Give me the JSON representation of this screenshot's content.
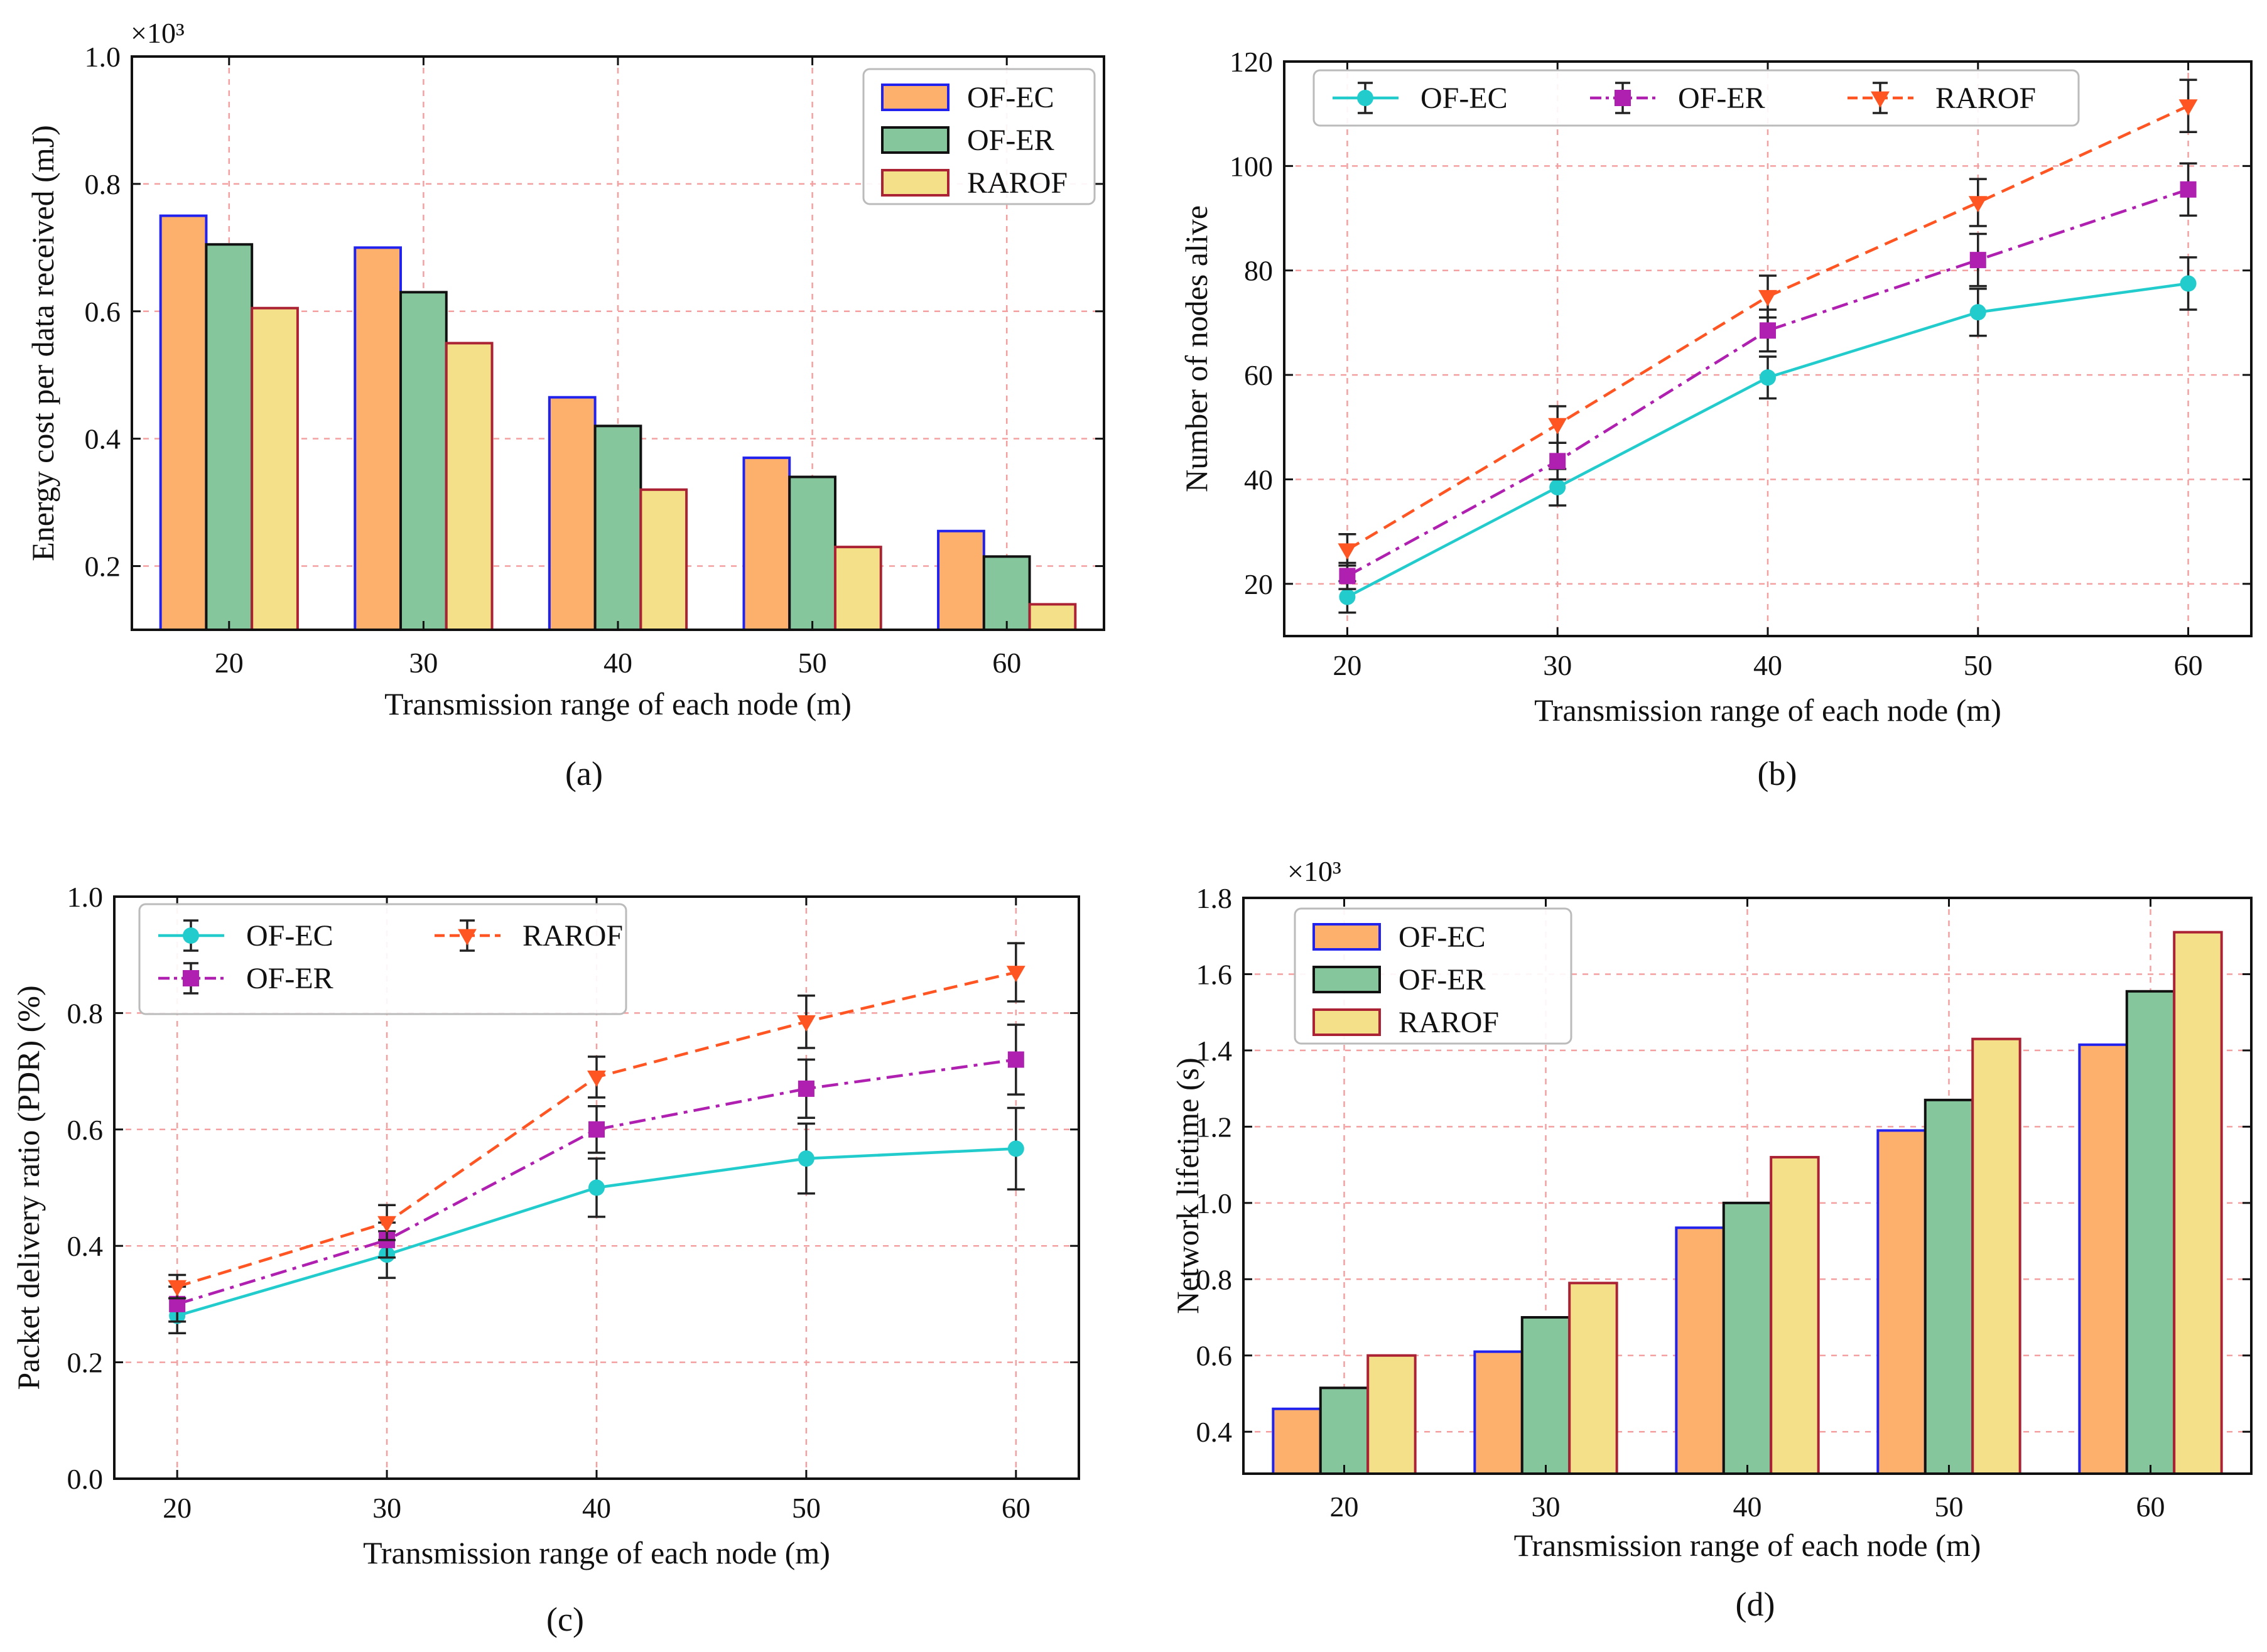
{
  "colors": {
    "bar_fill": [
      "#fdb06c",
      "#85c69d",
      "#f5e08a"
    ],
    "bar_edge": [
      "#2222ee",
      "#111111",
      "#aa2233"
    ],
    "line": [
      "#22cccc",
      "#b020b0",
      "#ff5522"
    ]
  },
  "chart_data": [
    {
      "type": "bar",
      "caption": "(a)",
      "title": "",
      "xlabel": "Transmission range of each node (m)",
      "ylabel": "Energy cost per data received (mJ)",
      "multiplier_label": "×10³",
      "categories": [
        "20",
        "30",
        "40",
        "50",
        "60"
      ],
      "ylim": [
        0.1,
        1.0
      ],
      "yticks": [
        0.2,
        0.4,
        0.6,
        0.8,
        1.0
      ],
      "ytick_labels": [
        "0.2",
        "0.4",
        "0.6",
        "0.8",
        "1.0"
      ],
      "grid": true,
      "legend": "top-right",
      "series": [
        {
          "name": "OF-EC",
          "values": [
            0.75,
            0.7,
            0.465,
            0.37,
            0.255
          ]
        },
        {
          "name": "OF-ER",
          "values": [
            0.705,
            0.63,
            0.42,
            0.34,
            0.215
          ]
        },
        {
          "name": "RAROF",
          "values": [
            0.605,
            0.55,
            0.32,
            0.23,
            0.14
          ]
        }
      ]
    },
    {
      "type": "line",
      "caption": "(b)",
      "title": "",
      "xlabel": "Transmission range of each node (m)",
      "ylabel": "Number of nodes alive",
      "x": [
        20,
        30,
        40,
        50,
        60
      ],
      "xlim": [
        17,
        63
      ],
      "ylim": [
        10,
        120
      ],
      "yticks": [
        20,
        40,
        60,
        80,
        100,
        120
      ],
      "ytick_labels": [
        "20",
        "40",
        "60",
        "80",
        "100",
        "120"
      ],
      "xtick_labels": [
        "20",
        "30",
        "40",
        "50",
        "60"
      ],
      "grid": true,
      "legend": "top",
      "legend_cols": 3,
      "series": [
        {
          "name": "OF-EC",
          "marker": "circle",
          "linestyle": "solid",
          "values": [
            17.5,
            38.5,
            59.5,
            72,
            77.5
          ],
          "errors": [
            3,
            3.5,
            4,
            4.5,
            5
          ]
        },
        {
          "name": "OF-ER",
          "marker": "square",
          "linestyle": "dashdot",
          "values": [
            21.5,
            43.5,
            68.5,
            82,
            95.5
          ],
          "errors": [
            2.5,
            3.5,
            4,
            5,
            5
          ]
        },
        {
          "name": "RAROF",
          "marker": "triangle-down",
          "linestyle": "dashed",
          "values": [
            26.5,
            50.5,
            75,
            93,
            111.5
          ],
          "errors": [
            3,
            3.5,
            4,
            4.5,
            5
          ]
        }
      ]
    },
    {
      "type": "line",
      "caption": "(c)",
      "title": "",
      "xlabel": "Transmission range of each node (m)",
      "ylabel": "Packet delivery ratio (PDR) (%)",
      "x": [
        20,
        30,
        40,
        50,
        60
      ],
      "xlim": [
        17,
        63
      ],
      "ylim": [
        0,
        1.0
      ],
      "yticks": [
        0.0,
        0.2,
        0.4,
        0.6,
        0.8,
        1.0
      ],
      "ytick_labels": [
        "0.0",
        "0.2",
        "0.4",
        "0.6",
        "0.8",
        "1.0"
      ],
      "xtick_labels": [
        "20",
        "30",
        "40",
        "50",
        "60"
      ],
      "grid": true,
      "legend": "top-left",
      "legend_cols": 2,
      "series": [
        {
          "name": "OF-EC",
          "marker": "circle",
          "linestyle": "solid",
          "values": [
            0.28,
            0.385,
            0.5,
            0.55,
            0.567
          ],
          "errors": [
            0.03,
            0.04,
            0.05,
            0.06,
            0.07
          ]
        },
        {
          "name": "OF-ER",
          "marker": "square",
          "linestyle": "dashdot",
          "values": [
            0.3,
            0.41,
            0.6,
            0.67,
            0.72
          ],
          "errors": [
            0.03,
            0.03,
            0.04,
            0.05,
            0.06
          ]
        },
        {
          "name": "RAROF",
          "marker": "triangle-down",
          "linestyle": "dashed",
          "values": [
            0.33,
            0.44,
            0.69,
            0.785,
            0.87
          ],
          "errors": [
            0.02,
            0.03,
            0.035,
            0.045,
            0.05
          ]
        }
      ]
    },
    {
      "type": "bar",
      "caption": "(d)",
      "title": "",
      "xlabel": "Transmission range of each node (m)",
      "ylabel": "Network lifetime (s)",
      "multiplier_label": "×10³",
      "categories": [
        "20",
        "30",
        "40",
        "50",
        "60"
      ],
      "ylim": [
        0.29,
        1.8
      ],
      "yticks": [
        0.4,
        0.6,
        0.8,
        1.0,
        1.2,
        1.4,
        1.6,
        1.8
      ],
      "ytick_labels": [
        "0.4",
        "0.6",
        "0.8",
        "1.0",
        "1.2",
        "1.4",
        "1.6",
        "1.8"
      ],
      "grid": true,
      "legend": "top-left",
      "series": [
        {
          "name": "OF-EC",
          "values": [
            0.46,
            0.61,
            0.935,
            1.19,
            1.415
          ]
        },
        {
          "name": "OF-ER",
          "values": [
            0.515,
            0.7,
            1.0,
            1.27,
            1.555
          ]
        },
        {
          "name": "RAROF",
          "values": [
            0.6,
            0.79,
            1.12,
            1.43,
            1.71
          ]
        }
      ]
    }
  ]
}
